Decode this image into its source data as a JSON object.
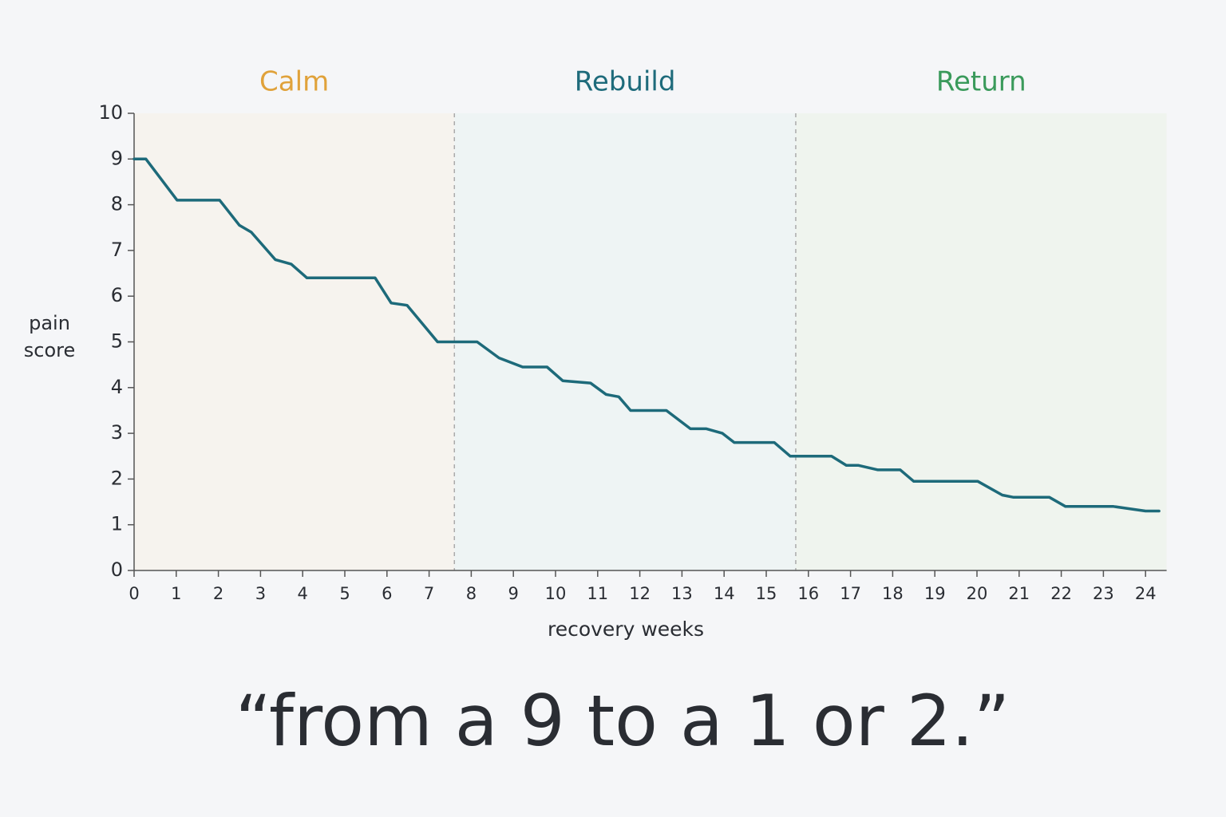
{
  "chart_data": {
    "type": "line",
    "xlabel": "recovery weeks",
    "ylabel": [
      "pain",
      "score"
    ],
    "caption": "“from a 9 to a 1 or 2.”",
    "phases": [
      {
        "name": "Calm",
        "start": 0,
        "end": 7.6,
        "color": "#e0a23a",
        "fill": "#f6f3ee"
      },
      {
        "name": "Rebuild",
        "start": 7.6,
        "end": 15.7,
        "color": "#1e6b7b",
        "fill": "#eef4f4"
      },
      {
        "name": "Return",
        "start": 15.7,
        "end": 24.5,
        "color": "#3a9a5b",
        "fill": "#eff4ee"
      }
    ],
    "x": [
      0,
      0.28,
      1.02,
      2.03,
      2.5,
      2.78,
      3.35,
      3.73,
      4.1,
      5.72,
      6.1,
      6.48,
      7.2,
      8.14,
      8.66,
      9.22,
      9.8,
      10.17,
      10.83,
      11.2,
      11.5,
      11.78,
      12.63,
      13.2,
      13.58,
      13.96,
      14.24,
      15.19,
      15.57,
      16.55,
      16.9,
      17.18,
      17.65,
      18.18,
      18.5,
      20.02,
      20.6,
      20.87,
      21.72,
      22.1,
      22.3,
      23.24,
      24.0,
      24.32
    ],
    "values": [
      9.0,
      9.0,
      8.1,
      8.1,
      7.55,
      7.4,
      6.8,
      6.7,
      6.4,
      6.4,
      5.85,
      5.8,
      5.0,
      5.0,
      4.65,
      4.45,
      4.45,
      4.15,
      4.1,
      3.85,
      3.8,
      3.5,
      3.5,
      3.1,
      3.1,
      3.0,
      2.8,
      2.8,
      2.5,
      2.5,
      2.3,
      2.3,
      2.2,
      2.2,
      1.95,
      1.95,
      1.65,
      1.6,
      1.6,
      1.4,
      1.4,
      1.4,
      1.3,
      1.3
    ],
    "color": "#1d6a7a",
    "xlim": [
      0,
      24.5
    ],
    "ylim": [
      0,
      10
    ],
    "xticks": [
      0,
      1,
      2,
      3,
      4,
      5,
      6,
      7,
      8,
      9,
      10,
      11,
      12,
      13,
      14,
      15,
      16,
      17,
      18,
      19,
      20,
      21,
      22,
      23,
      24
    ],
    "yticks": [
      0,
      1,
      2,
      3,
      4,
      5,
      6,
      7,
      8,
      9,
      10
    ]
  }
}
